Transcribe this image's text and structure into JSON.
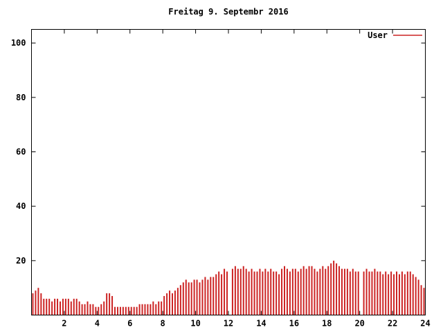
{
  "chart_data": {
    "type": "bar",
    "title": "Freitag 9. Septembr 2016",
    "series": [
      {
        "name": "User",
        "color": "#cc2222"
      }
    ],
    "xlabel": "",
    "ylabel": "",
    "xlim": [
      0,
      24
    ],
    "ylim": [
      0,
      105
    ],
    "xticks": [
      2,
      4,
      6,
      8,
      10,
      12,
      14,
      16,
      18,
      20,
      22,
      24
    ],
    "yticks": [
      20,
      40,
      60,
      80,
      100
    ],
    "grid": false,
    "legend_position": "top-right",
    "sample_interval_hours": 0.1667,
    "values": [
      8,
      9,
      10,
      8,
      6,
      6,
      6,
      5,
      6,
      6,
      5,
      6,
      6,
      6,
      5,
      6,
      6,
      5,
      4,
      4,
      5,
      4,
      4,
      3,
      3,
      4,
      5,
      8,
      8,
      7,
      3,
      3,
      3,
      3,
      3,
      3,
      3,
      3,
      3,
      4,
      4,
      4,
      4,
      4,
      5,
      4,
      5,
      5,
      7,
      8,
      9,
      8,
      9,
      10,
      11,
      12,
      13,
      12,
      12,
      13,
      13,
      12,
      13,
      14,
      13,
      14,
      14,
      15,
      16,
      15,
      17,
      16,
      0,
      17,
      18,
      17,
      17,
      18,
      17,
      16,
      17,
      16,
      16,
      17,
      16,
      17,
      16,
      17,
      16,
      16,
      15,
      17,
      18,
      17,
      16,
      17,
      17,
      16,
      17,
      18,
      17,
      18,
      18,
      17,
      16,
      17,
      18,
      17,
      18,
      19,
      20,
      19,
      18,
      17,
      17,
      17,
      16,
      17,
      16,
      16,
      0,
      16,
      17,
      16,
      16,
      17,
      16,
      16,
      15,
      16,
      15,
      16,
      15,
      16,
      15,
      16,
      15,
      16,
      16,
      15,
      14,
      13,
      11,
      10
    ]
  }
}
